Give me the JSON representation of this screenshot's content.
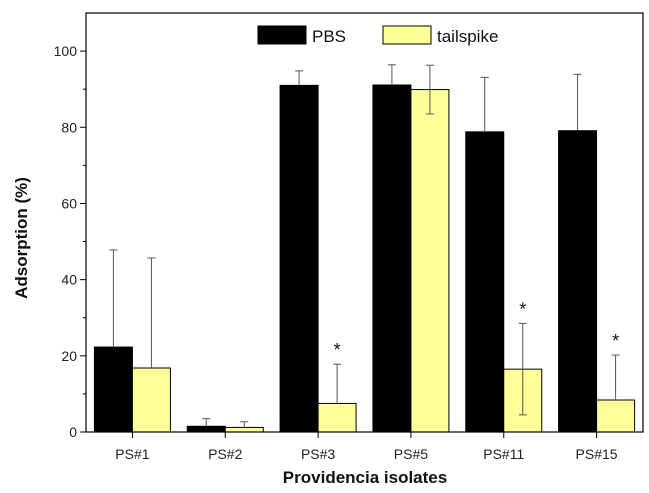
{
  "chart_data": {
    "type": "bar",
    "categories": [
      "PS#1",
      "PS#2",
      "PS#3",
      "PS#5",
      "PS#11",
      "PS#15"
    ],
    "series": [
      {
        "name": "PBS",
        "color": "#000000",
        "values": [
          22.3,
          1.5,
          91.0,
          91.1,
          78.8,
          79.1
        ],
        "error": [
          25.5,
          2.0,
          3.8,
          5.3,
          14.3,
          14.8
        ]
      },
      {
        "name": "tailspike",
        "color": "#ffff99",
        "values": [
          16.8,
          1.2,
          7.5,
          89.9,
          16.5,
          8.4
        ],
        "error": [
          28.9,
          1.5,
          10.3,
          6.4,
          12.0,
          11.8
        ]
      }
    ],
    "significance": [
      "",
      "",
      "*",
      "",
      "*",
      "*"
    ],
    "title": "",
    "xlabel": "Providencia isolates",
    "ylabel": "Adsorption (%)",
    "ylim": [
      0,
      110
    ],
    "yticks": [
      0,
      20,
      40,
      60,
      80,
      100
    ],
    "grid": false,
    "legend_position": "top"
  }
}
